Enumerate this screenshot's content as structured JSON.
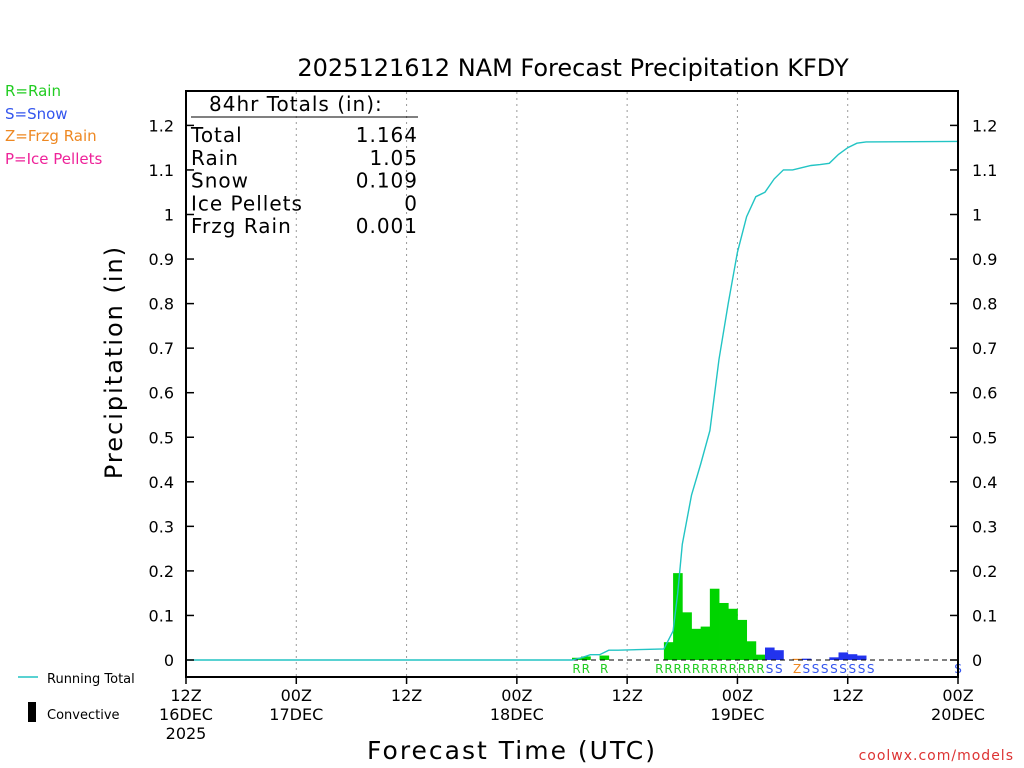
{
  "chart_data": {
    "type": "bar",
    "title": "2025121612 NAM Forecast Precipitation KFDY",
    "xlabel": "Forecast Time (UTC)",
    "ylabel": "Precipitation (in)",
    "ylim": [
      0,
      1.25
    ],
    "y_ticks": [
      0,
      0.1,
      0.2,
      0.3,
      0.4,
      0.5,
      0.6,
      0.7,
      0.8,
      0.9,
      1,
      1.1,
      1.2
    ],
    "x_unit": "forecast hour",
    "xlim": [
      0,
      84
    ],
    "x_ticks": [
      {
        "hour": 0,
        "label": "12Z",
        "date": "16DEC",
        "year": "2025"
      },
      {
        "hour": 12,
        "label": "00Z",
        "date": "17DEC",
        "year": ""
      },
      {
        "hour": 24,
        "label": "12Z",
        "date": "",
        "year": ""
      },
      {
        "hour": 36,
        "label": "00Z",
        "date": "18DEC",
        "year": ""
      },
      {
        "hour": 48,
        "label": "12Z",
        "date": "",
        "year": ""
      },
      {
        "hour": 60,
        "label": "00Z",
        "date": "19DEC",
        "year": ""
      },
      {
        "hour": 72,
        "label": "12Z",
        "date": "",
        "year": ""
      },
      {
        "hour": 84,
        "label": "00Z",
        "date": "20DEC",
        "year": ""
      }
    ],
    "bars": [
      {
        "hour": 43,
        "value": 0.005,
        "type": "R"
      },
      {
        "hour": 44,
        "value": 0.008,
        "type": "R"
      },
      {
        "hour": 46,
        "value": 0.01,
        "type": "R"
      },
      {
        "hour": 53,
        "value": 0.04,
        "type": "R"
      },
      {
        "hour": 54,
        "value": 0.195,
        "type": "R"
      },
      {
        "hour": 55,
        "value": 0.107,
        "type": "R"
      },
      {
        "hour": 56,
        "value": 0.07,
        "type": "R"
      },
      {
        "hour": 57,
        "value": 0.075,
        "type": "R"
      },
      {
        "hour": 58,
        "value": 0.16,
        "type": "R"
      },
      {
        "hour": 59,
        "value": 0.128,
        "type": "R"
      },
      {
        "hour": 60,
        "value": 0.115,
        "type": "R"
      },
      {
        "hour": 61,
        "value": 0.09,
        "type": "R"
      },
      {
        "hour": 62,
        "value": 0.042,
        "type": "R"
      },
      {
        "hour": 63,
        "value": 0.012,
        "type": "R"
      },
      {
        "hour": 64,
        "value": 0.028,
        "type": "S"
      },
      {
        "hour": 65,
        "value": 0.022,
        "type": "S"
      },
      {
        "hour": 67,
        "value": 0.001,
        "type": "Z"
      },
      {
        "hour": 68,
        "value": 0.003,
        "type": "S"
      },
      {
        "hour": 71,
        "value": 0.006,
        "type": "S"
      },
      {
        "hour": 72,
        "value": 0.017,
        "type": "S"
      },
      {
        "hour": 73,
        "value": 0.013,
        "type": "S"
      },
      {
        "hour": 74,
        "value": 0.01,
        "type": "S"
      }
    ],
    "type_codes": [
      {
        "hour": 43,
        "code": "R"
      },
      {
        "hour": 44,
        "code": "R"
      },
      {
        "hour": 46,
        "code": "R"
      },
      {
        "hour": 52,
        "code": "R"
      },
      {
        "hour": 53,
        "code": "R"
      },
      {
        "hour": 54,
        "code": "R"
      },
      {
        "hour": 55,
        "code": "R"
      },
      {
        "hour": 56,
        "code": "R"
      },
      {
        "hour": 57,
        "code": "R"
      },
      {
        "hour": 58,
        "code": "R"
      },
      {
        "hour": 59,
        "code": "R"
      },
      {
        "hour": 60,
        "code": "R"
      },
      {
        "hour": 61,
        "code": "R"
      },
      {
        "hour": 62,
        "code": "R"
      },
      {
        "hour": 63,
        "code": "R"
      },
      {
        "hour": 64,
        "code": "S"
      },
      {
        "hour": 65,
        "code": "S"
      },
      {
        "hour": 67,
        "code": "Z"
      },
      {
        "hour": 68,
        "code": "S"
      },
      {
        "hour": 69,
        "code": "S"
      },
      {
        "hour": 70,
        "code": "S"
      },
      {
        "hour": 71,
        "code": "S"
      },
      {
        "hour": 72,
        "code": "S"
      },
      {
        "hour": 73,
        "code": "S"
      },
      {
        "hour": 74,
        "code": "S"
      },
      {
        "hour": 75,
        "code": "S"
      },
      {
        "hour": 84,
        "code": "S"
      }
    ],
    "running_total": [
      [
        0,
        0
      ],
      [
        42,
        0
      ],
      [
        43,
        0.005
      ],
      [
        44,
        0.012
      ],
      [
        45,
        0.012
      ],
      [
        46,
        0.022
      ],
      [
        47,
        0.022
      ],
      [
        52,
        0.025
      ],
      [
        53,
        0.065
      ],
      [
        53.5,
        0.15
      ],
      [
        54,
        0.26
      ],
      [
        55,
        0.37
      ],
      [
        56,
        0.44
      ],
      [
        57,
        0.515
      ],
      [
        58,
        0.675
      ],
      [
        59,
        0.8
      ],
      [
        60,
        0.915
      ],
      [
        61,
        0.995
      ],
      [
        62,
        1.04
      ],
      [
        63,
        1.05
      ],
      [
        64,
        1.08
      ],
      [
        65,
        1.1
      ],
      [
        66,
        1.1
      ],
      [
        67,
        1.105
      ],
      [
        68,
        1.11
      ],
      [
        69,
        1.112
      ],
      [
        70,
        1.115
      ],
      [
        71,
        1.135
      ],
      [
        72,
        1.15
      ],
      [
        73,
        1.16
      ],
      [
        74,
        1.163
      ],
      [
        84,
        1.164
      ]
    ]
  },
  "type_colors": {
    "R": "#00d400",
    "S": "#2233ee",
    "Z": "#ee8822",
    "P": "#ee2299"
  },
  "type_label_colors": {
    "R": "#22cc22",
    "S": "#3355ee",
    "Z": "#ee8822",
    "P": "#ee2299"
  },
  "line_color": "#22c4c4",
  "legend": {
    "rain": "R=Rain",
    "snow": "S=Snow",
    "frzg": "Z=Frzg Rain",
    "ice": "P=Ice Pellets",
    "running_total": "Running Total",
    "convective": "Convective"
  },
  "totals": {
    "header": "84hr Totals (in):",
    "rows": [
      {
        "label": "Total",
        "value": "1.164"
      },
      {
        "label": "Rain",
        "value": "1.05"
      },
      {
        "label": "Snow",
        "value": "0.109"
      },
      {
        "label": "Ice Pellets",
        "value": "0"
      },
      {
        "label": "Frzg Rain",
        "value": "0.001"
      }
    ]
  },
  "credit": "coolwx.com/models"
}
